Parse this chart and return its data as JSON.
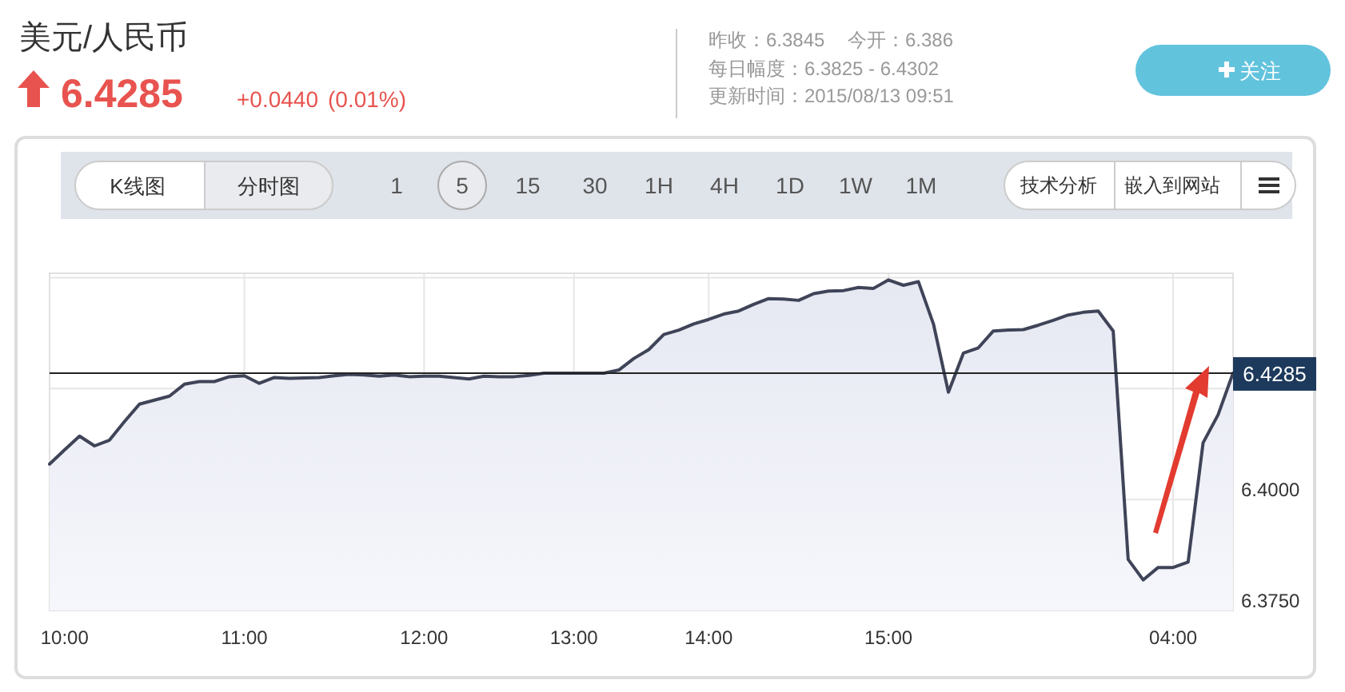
{
  "chart_data": {
    "type": "area",
    "title": "美元/人民币",
    "subtitle": "6.4285",
    "annotations": [
      "+0.0440",
      "(0.01%)",
      "昨收：6.3845",
      "今开：6.386",
      "每日幅度：6.3825 - 6.4302",
      "更新时间：2015/08/13 09:51",
      "关注",
      "K线图",
      "分时图",
      "1",
      "5",
      "15",
      "30",
      "1H",
      "4H",
      "1D",
      "1W",
      "1M",
      "技术分析",
      "嵌入到网站"
    ],
    "categories": [
      null,
      "10:00",
      null,
      null,
      null,
      null,
      null,
      null,
      null,
      null,
      null,
      null,
      null,
      "11:00",
      null,
      null,
      null,
      null,
      null,
      null,
      null,
      null,
      null,
      null,
      null,
      "12:00",
      null,
      null,
      null,
      null,
      null,
      null,
      null,
      null,
      null,
      "13:00",
      null,
      null,
      null,
      null,
      null,
      null,
      null,
      null,
      "14:00",
      null,
      null,
      null,
      null,
      null,
      null,
      null,
      null,
      null,
      null,
      null,
      "15:00",
      null,
      null,
      null,
      null,
      null,
      null,
      null,
      null,
      null,
      null,
      null,
      null,
      null,
      null,
      null,
      null,
      null,
      null,
      "04:00",
      null,
      null,
      null,
      null
    ],
    "series": [
      {
        "color": "#3f4458",
        "values": [
          6.408,
          6.4112,
          6.4143,
          6.4121,
          6.4134,
          6.4176,
          6.4215,
          6.4224,
          6.4233,
          6.426,
          6.4266,
          6.4266,
          6.4277,
          6.4279,
          6.4262,
          6.4275,
          6.4273,
          6.4274,
          6.4275,
          6.4279,
          6.4282,
          6.4281,
          6.4278,
          6.4281,
          6.4277,
          6.4278,
          6.4278,
          6.4275,
          6.4272,
          6.4278,
          6.4277,
          6.4277,
          6.428,
          6.4285,
          6.4285,
          6.4285,
          6.4285,
          6.4285,
          6.4292,
          6.4318,
          6.4338,
          6.4372,
          6.4382,
          6.4396,
          6.4406,
          6.4418,
          6.4425,
          6.444,
          6.4453,
          6.4452,
          6.4449,
          6.4464,
          6.447,
          6.4471,
          6.4478,
          6.4476,
          6.4495,
          6.4483,
          6.4491,
          6.4396,
          6.4242,
          6.433,
          6.4342,
          6.438,
          6.4382,
          6.4383,
          6.4393,
          6.4404,
          6.4416,
          6.4422,
          6.4425,
          6.438,
          6.3865,
          6.3819,
          6.3847,
          6.3847,
          6.3859,
          6.4128,
          6.4191,
          6.4285
        ]
      }
    ],
    "ylim": [
      6.375,
      6.451
    ],
    "yticks": [
      {
        "value": 6.375,
        "label": "6.3750"
      },
      {
        "value": 6.4,
        "label": "6.4000"
      },
      {
        "value": 6.425,
        "label": null
      },
      {
        "value": 6.45,
        "label": null
      }
    ],
    "ref_lines": [
      {
        "axis": "y",
        "value": 6.4285,
        "label": "6.4285",
        "color": "#222222"
      }
    ],
    "grid": true,
    "marker": "none",
    "line_style": "solid"
  }
}
